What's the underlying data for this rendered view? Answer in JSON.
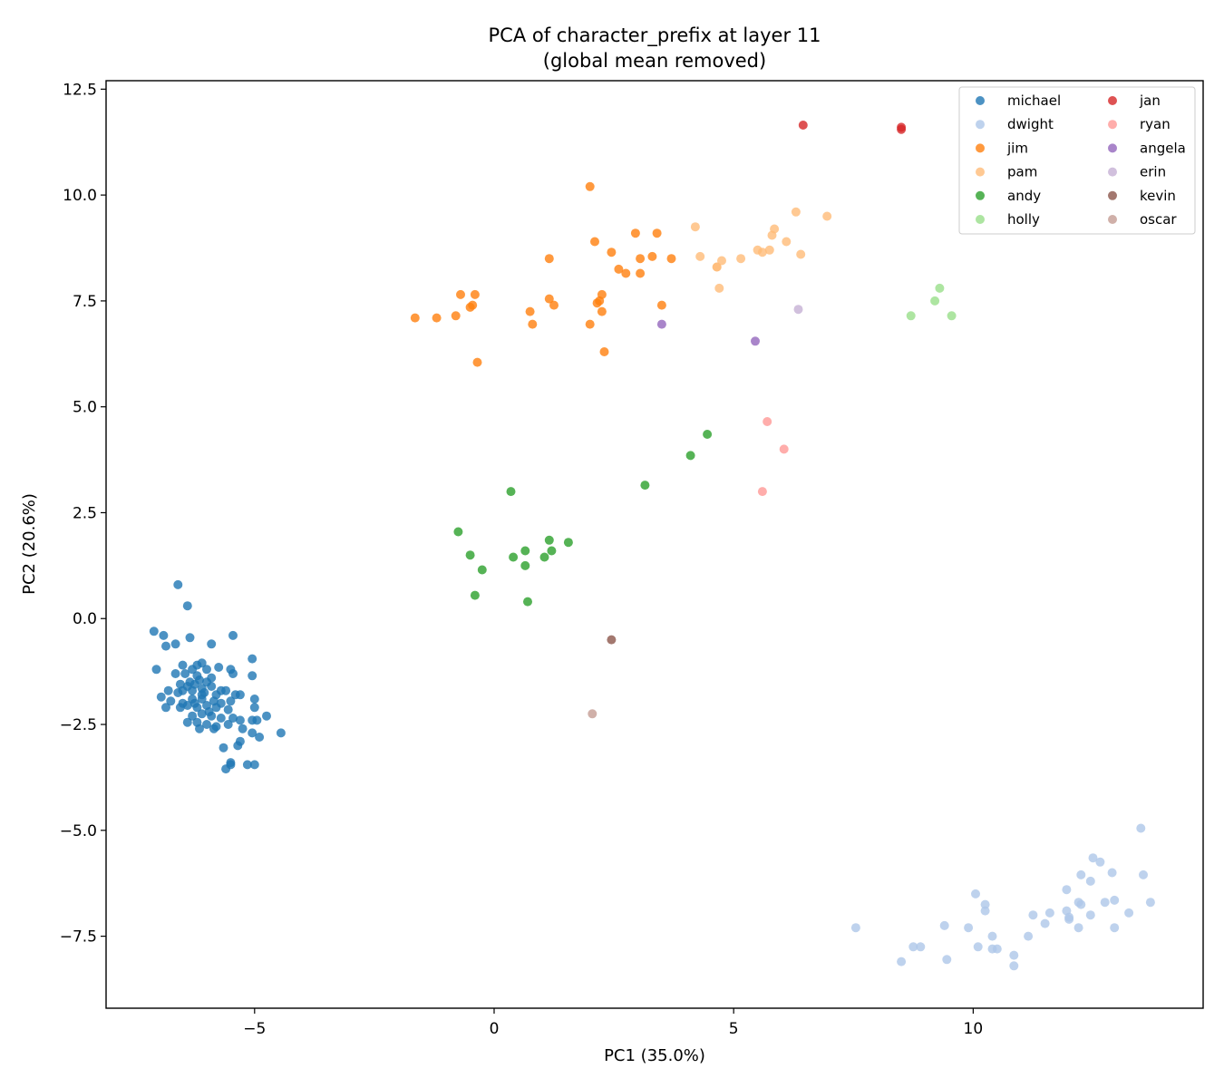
{
  "chart_data": {
    "type": "scatter",
    "title": "PCA of character_prefix at layer 11",
    "subtitle": "(global mean removed)",
    "xlabel": "PC1 (35.0%)",
    "ylabel": "PC2 (20.6%)",
    "xlim": [
      -8.1,
      14.8
    ],
    "ylim": [
      -9.2,
      12.7
    ],
    "xticks": [
      -5,
      0,
      5,
      10
    ],
    "xtick_labels": [
      "−5",
      "0",
      "5",
      "10"
    ],
    "yticks": [
      -7.5,
      -5.0,
      -2.5,
      0.0,
      2.5,
      5.0,
      7.5,
      10.0,
      12.5
    ],
    "ytick_labels": [
      "−7.5",
      "−5.0",
      "−2.5",
      "0.0",
      "2.5",
      "5.0",
      "7.5",
      "10.0",
      "12.5"
    ],
    "grid": false,
    "legend_position": "top-right",
    "legend_columns": 2,
    "series": [
      {
        "name": "michael",
        "color": "#1f77b4",
        "points": [
          [
            -6.6,
            0.8
          ],
          [
            -6.4,
            0.3
          ],
          [
            -7.1,
            -0.3
          ],
          [
            -6.9,
            -0.4
          ],
          [
            -6.65,
            -0.6
          ],
          [
            -6.85,
            -0.65
          ],
          [
            -6.35,
            -0.45
          ],
          [
            -5.9,
            -0.6
          ],
          [
            -5.45,
            -0.4
          ],
          [
            -7.05,
            -1.2
          ],
          [
            -5.05,
            -0.95
          ],
          [
            -6.5,
            -1.1
          ],
          [
            -6.2,
            -1.1
          ],
          [
            -6.1,
            -1.05
          ],
          [
            -6.3,
            -1.2
          ],
          [
            -6.45,
            -1.3
          ],
          [
            -6.65,
            -1.3
          ],
          [
            -6.0,
            -1.2
          ],
          [
            -5.75,
            -1.15
          ],
          [
            -5.5,
            -1.2
          ],
          [
            -5.45,
            -1.3
          ],
          [
            -6.2,
            -1.35
          ],
          [
            -5.9,
            -1.4
          ],
          [
            -6.35,
            -1.5
          ],
          [
            -6.15,
            -1.45
          ],
          [
            -6.0,
            -1.5
          ],
          [
            -6.55,
            -1.55
          ],
          [
            -6.4,
            -1.6
          ],
          [
            -6.25,
            -1.55
          ],
          [
            -6.5,
            -1.7
          ],
          [
            -6.3,
            -1.7
          ],
          [
            -6.1,
            -1.65
          ],
          [
            -5.9,
            -1.6
          ],
          [
            -5.7,
            -1.7
          ],
          [
            -6.05,
            -1.75
          ],
          [
            -5.8,
            -1.8
          ],
          [
            -6.6,
            -1.75
          ],
          [
            -6.8,
            -1.7
          ],
          [
            -5.6,
            -1.7
          ],
          [
            -5.4,
            -1.8
          ],
          [
            -5.05,
            -1.35
          ],
          [
            -6.95,
            -1.85
          ],
          [
            -6.75,
            -1.95
          ],
          [
            -6.5,
            -2.0
          ],
          [
            -6.3,
            -1.9
          ],
          [
            -6.1,
            -1.9
          ],
          [
            -5.85,
            -1.95
          ],
          [
            -5.7,
            -2.0
          ],
          [
            -5.5,
            -1.95
          ],
          [
            -5.3,
            -1.8
          ],
          [
            -5.0,
            -1.9
          ],
          [
            -6.55,
            -2.1
          ],
          [
            -6.4,
            -2.05
          ],
          [
            -6.2,
            -2.1
          ],
          [
            -6.0,
            -2.05
          ],
          [
            -5.8,
            -2.1
          ],
          [
            -5.55,
            -2.15
          ],
          [
            -6.85,
            -2.1
          ],
          [
            -5.0,
            -2.1
          ],
          [
            -6.3,
            -2.3
          ],
          [
            -6.1,
            -2.25
          ],
          [
            -5.9,
            -2.3
          ],
          [
            -5.7,
            -2.35
          ],
          [
            -5.45,
            -2.35
          ],
          [
            -5.3,
            -2.4
          ],
          [
            -6.4,
            -2.45
          ],
          [
            -6.2,
            -2.45
          ],
          [
            -6.0,
            -2.5
          ],
          [
            -5.8,
            -2.55
          ],
          [
            -5.55,
            -2.5
          ],
          [
            -5.05,
            -2.4
          ],
          [
            -4.95,
            -2.4
          ],
          [
            -4.75,
            -2.3
          ],
          [
            -6.15,
            -2.6
          ],
          [
            -5.85,
            -2.6
          ],
          [
            -5.25,
            -2.6
          ],
          [
            -5.05,
            -2.7
          ],
          [
            -4.9,
            -2.8
          ],
          [
            -4.45,
            -2.7
          ],
          [
            -5.3,
            -2.9
          ],
          [
            -5.35,
            -3.0
          ],
          [
            -5.65,
            -3.05
          ],
          [
            -5.5,
            -3.4
          ],
          [
            -5.5,
            -3.45
          ],
          [
            -5.6,
            -3.55
          ],
          [
            -5.15,
            -3.45
          ],
          [
            -5.0,
            -3.45
          ],
          [
            -6.1,
            -1.8
          ],
          [
            -5.95,
            -2.2
          ],
          [
            -6.25,
            -2.0
          ]
        ]
      },
      {
        "name": "dwight",
        "color": "#aec7e8",
        "points": [
          [
            7.55,
            -7.3
          ],
          [
            8.5,
            -8.1
          ],
          [
            8.75,
            -7.75
          ],
          [
            8.9,
            -7.75
          ],
          [
            9.4,
            -7.25
          ],
          [
            9.45,
            -8.05
          ],
          [
            9.9,
            -7.3
          ],
          [
            10.05,
            -6.5
          ],
          [
            10.1,
            -7.75
          ],
          [
            10.25,
            -6.75
          ],
          [
            10.25,
            -6.9
          ],
          [
            10.4,
            -7.5
          ],
          [
            10.4,
            -7.8
          ],
          [
            10.5,
            -7.8
          ],
          [
            10.85,
            -7.95
          ],
          [
            10.85,
            -8.2
          ],
          [
            11.15,
            -7.5
          ],
          [
            11.25,
            -7.0
          ],
          [
            11.5,
            -7.2
          ],
          [
            11.6,
            -6.95
          ],
          [
            11.95,
            -6.9
          ],
          [
            11.95,
            -6.4
          ],
          [
            12.0,
            -7.1
          ],
          [
            12.0,
            -7.05
          ],
          [
            12.2,
            -7.3
          ],
          [
            12.2,
            -6.7
          ],
          [
            12.25,
            -6.05
          ],
          [
            12.25,
            -6.75
          ],
          [
            12.45,
            -7.0
          ],
          [
            12.45,
            -6.2
          ],
          [
            12.5,
            -5.65
          ],
          [
            12.65,
            -5.75
          ],
          [
            12.75,
            -6.7
          ],
          [
            12.9,
            -6.0
          ],
          [
            12.95,
            -7.3
          ],
          [
            12.95,
            -6.65
          ],
          [
            13.25,
            -6.95
          ],
          [
            13.5,
            -4.95
          ],
          [
            13.55,
            -6.05
          ],
          [
            13.7,
            -6.7
          ]
        ]
      },
      {
        "name": "jim",
        "color": "#ff7f0e",
        "points": [
          [
            -1.65,
            7.1
          ],
          [
            -1.2,
            7.1
          ],
          [
            -0.8,
            7.15
          ],
          [
            -0.7,
            7.65
          ],
          [
            -0.5,
            7.35
          ],
          [
            -0.45,
            7.4
          ],
          [
            -0.4,
            7.65
          ],
          [
            -0.35,
            6.05
          ],
          [
            0.75,
            7.25
          ],
          [
            0.8,
            6.95
          ],
          [
            1.15,
            7.55
          ],
          [
            1.15,
            8.5
          ],
          [
            1.25,
            7.4
          ],
          [
            2.0,
            6.95
          ],
          [
            2.0,
            10.2
          ],
          [
            2.1,
            8.9
          ],
          [
            2.15,
            7.45
          ],
          [
            2.2,
            7.5
          ],
          [
            2.25,
            7.65
          ],
          [
            2.25,
            7.25
          ],
          [
            2.3,
            6.3
          ],
          [
            2.45,
            8.65
          ],
          [
            2.6,
            8.25
          ],
          [
            2.75,
            8.15
          ],
          [
            2.95,
            9.1
          ],
          [
            3.05,
            8.15
          ],
          [
            3.05,
            8.5
          ],
          [
            3.3,
            8.55
          ],
          [
            3.4,
            9.1
          ],
          [
            3.5,
            7.4
          ],
          [
            3.7,
            8.5
          ]
        ]
      },
      {
        "name": "pam",
        "color": "#ffbb78",
        "points": [
          [
            4.2,
            9.25
          ],
          [
            4.3,
            8.55
          ],
          [
            4.65,
            8.3
          ],
          [
            4.65,
            8.3
          ],
          [
            4.7,
            7.8
          ],
          [
            4.75,
            8.45
          ],
          [
            5.15,
            8.5
          ],
          [
            5.5,
            8.7
          ],
          [
            5.6,
            8.65
          ],
          [
            5.75,
            8.7
          ],
          [
            5.8,
            9.05
          ],
          [
            5.85,
            9.2
          ],
          [
            6.1,
            8.9
          ],
          [
            6.3,
            9.6
          ],
          [
            6.4,
            8.6
          ],
          [
            6.95,
            9.5
          ]
        ]
      },
      {
        "name": "andy",
        "color": "#2ca02c",
        "points": [
          [
            -0.75,
            2.05
          ],
          [
            -0.5,
            1.5
          ],
          [
            -0.4,
            0.55
          ],
          [
            -0.25,
            1.15
          ],
          [
            0.35,
            3.0
          ],
          [
            0.4,
            1.45
          ],
          [
            0.65,
            1.6
          ],
          [
            0.65,
            1.25
          ],
          [
            0.7,
            0.4
          ],
          [
            1.05,
            1.45
          ],
          [
            1.15,
            1.85
          ],
          [
            1.2,
            1.6
          ],
          [
            1.55,
            1.8
          ],
          [
            3.15,
            3.15
          ],
          [
            4.1,
            3.85
          ],
          [
            4.45,
            4.35
          ]
        ]
      },
      {
        "name": "holly",
        "color": "#98df8a",
        "points": [
          [
            8.7,
            7.15
          ],
          [
            9.2,
            7.5
          ],
          [
            9.3,
            7.8
          ],
          [
            9.55,
            7.15
          ]
        ]
      },
      {
        "name": "jan",
        "color": "#d62728",
        "points": [
          [
            6.45,
            11.65
          ],
          [
            8.5,
            11.6
          ],
          [
            8.5,
            11.55
          ]
        ]
      },
      {
        "name": "ryan",
        "color": "#ff9896",
        "points": [
          [
            5.7,
            4.65
          ],
          [
            6.05,
            4.0
          ],
          [
            5.6,
            3.0
          ]
        ]
      },
      {
        "name": "angela",
        "color": "#9467bd",
        "points": [
          [
            3.5,
            6.95
          ],
          [
            5.45,
            6.55
          ]
        ]
      },
      {
        "name": "erin",
        "color": "#c5b0d5",
        "points": [
          [
            6.35,
            7.3
          ]
        ]
      },
      {
        "name": "kevin",
        "color": "#8c564b",
        "points": [
          [
            2.45,
            -0.5
          ]
        ]
      },
      {
        "name": "oscar",
        "color": "#c49c94",
        "points": [
          [
            2.05,
            -2.25
          ]
        ]
      }
    ]
  }
}
